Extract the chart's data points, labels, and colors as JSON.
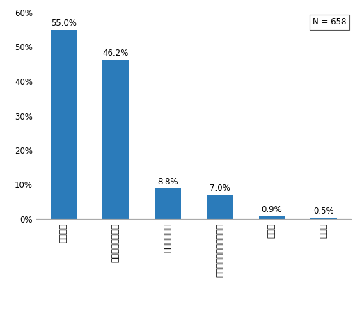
{
  "categories": [
    "証券会社",
    "銀行等の金融機関",
    "投資信託会社",
    "ゆうちょ銀行（郵便局）",
    "その他",
    "無回答"
  ],
  "values": [
    55.0,
    46.2,
    8.8,
    7.0,
    0.9,
    0.5
  ],
  "bar_color": "#2b7bba",
  "ylim": [
    0,
    60
  ],
  "yticks": [
    0,
    10,
    20,
    30,
    40,
    50,
    60
  ],
  "ytick_labels": [
    "0%",
    "10%",
    "20%",
    "30%",
    "40%",
    "50%",
    "60%"
  ],
  "n_label": "N = 658",
  "value_label_fontsize": 8.5,
  "tick_label_fontsize": 8.5,
  "n_label_fontsize": 8.5
}
